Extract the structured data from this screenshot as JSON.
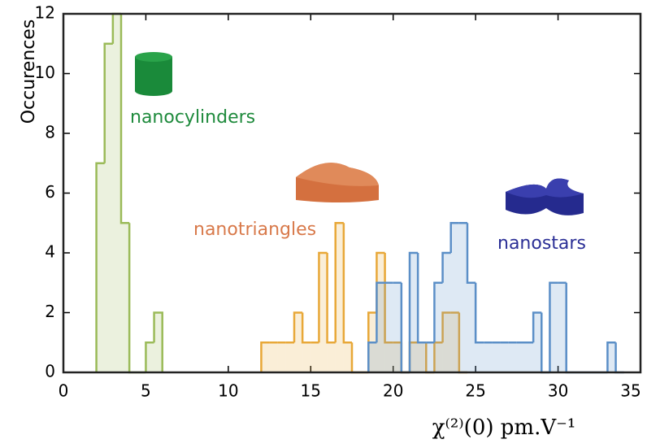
{
  "chart_data": {
    "type": "histogram",
    "ylabel": "Occurences",
    "xlabel": "χ⁽²⁾(0)    pm.V⁻¹",
    "xlim": [
      0,
      35
    ],
    "xticks": [
      0,
      5,
      10,
      15,
      20,
      25,
      30,
      35
    ],
    "ylim": [
      0,
      12
    ],
    "yticks": [
      0,
      2,
      4,
      6,
      8,
      10,
      12
    ],
    "grid": false,
    "series": [
      {
        "name": "nanocylinders",
        "color": "#9bbb59",
        "label_color": "#1e8a3c",
        "bins": [
          2,
          2.5,
          3,
          3.5,
          4,
          4.5,
          5,
          5.5,
          6
        ],
        "values": [
          7,
          11,
          12,
          5,
          0,
          0,
          1,
          2
        ]
      },
      {
        "name": "nanotriangles",
        "color": "#e8a838",
        "label_color": "#d8794a",
        "bins": [
          12,
          12.5,
          13,
          13.5,
          14,
          14.5,
          15,
          15.5,
          16,
          16.5,
          17,
          17.5,
          18,
          18.5,
          19,
          19.5,
          20,
          20.5,
          21,
          21.5,
          22,
          22.5,
          23,
          23.5,
          24,
          24.5
        ],
        "values": [
          1,
          1,
          1,
          1,
          2,
          1,
          1,
          4,
          1,
          5,
          1,
          0,
          0,
          2,
          4,
          1,
          1,
          0,
          1,
          1,
          0,
          1,
          2,
          2,
          0
        ]
      },
      {
        "name": "nanostars",
        "color": "#5b8fc7",
        "label_color": "#2b2f96",
        "bins": [
          18.5,
          19,
          19.5,
          20,
          20.5,
          21,
          21.5,
          22,
          22.5,
          23,
          23.5,
          24,
          24.5,
          25,
          25.5,
          26,
          26.5,
          27,
          27.5,
          28,
          28.5,
          29,
          29.5,
          30,
          30.5,
          31,
          31.5,
          32,
          32.5,
          33,
          33.5,
          34
        ],
        "values": [
          1,
          3,
          3,
          3,
          0,
          4,
          1,
          1,
          3,
          4,
          5,
          5,
          3,
          1,
          1,
          1,
          1,
          1,
          1,
          1,
          2,
          0,
          3,
          3,
          0,
          0,
          0,
          0,
          0,
          1,
          0
        ]
      }
    ]
  }
}
